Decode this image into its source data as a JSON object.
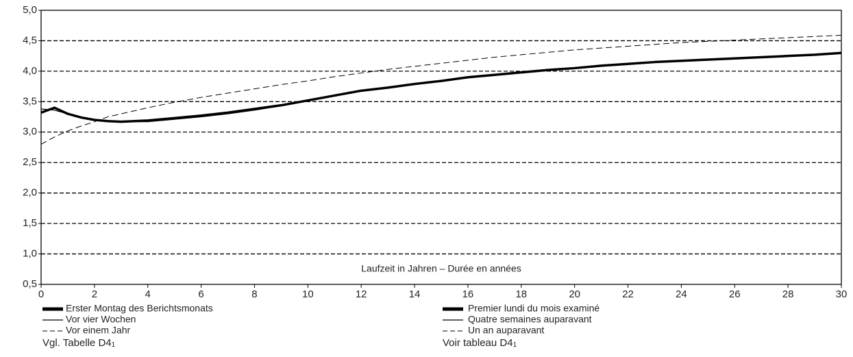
{
  "chart_data": {
    "type": "line",
    "xlabel": "Laufzeit in Jahren – Durée en années",
    "x": [
      0,
      0.5,
      1,
      1.5,
      2,
      2.5,
      3,
      4,
      5,
      6,
      7,
      8,
      9,
      10,
      11,
      12,
      13,
      14,
      15,
      16,
      17,
      18,
      19,
      20,
      21,
      22,
      23,
      24,
      25,
      26,
      27,
      28,
      29,
      30
    ],
    "series": [
      {
        "name": "Erster Montag des Berichtsmonats",
        "name_fr": "Premier lundi du mois examiné",
        "color": "#000000",
        "style": "thick",
        "values": [
          3.32,
          3.4,
          3.3,
          3.24,
          3.2,
          3.18,
          3.17,
          3.19,
          3.23,
          3.27,
          3.32,
          3.38,
          3.44,
          3.52,
          3.6,
          3.68,
          3.73,
          3.79,
          3.84,
          3.9,
          3.94,
          3.98,
          4.02,
          4.05,
          4.09,
          4.12,
          4.15,
          4.17,
          4.19,
          4.21,
          4.23,
          4.25,
          4.27,
          4.3
        ]
      },
      {
        "name": "Vor vier Wochen",
        "name_fr": "Quatre semaines auparavant",
        "color": "#000000",
        "style": "thin",
        "values": [
          3.38,
          3.36,
          3.3,
          3.23,
          3.19,
          3.18,
          3.17,
          3.17,
          3.21,
          3.25,
          3.3,
          3.36,
          3.43,
          3.51,
          3.59,
          3.67,
          3.72,
          3.78,
          3.83,
          3.89,
          3.93,
          3.97,
          4.01,
          4.04,
          4.08,
          4.11,
          4.14,
          4.16,
          4.18,
          4.2,
          4.22,
          4.24,
          4.26,
          4.29
        ]
      },
      {
        "name": "Vor einem Jahr",
        "name_fr": "Un an auparavant",
        "color": "#000000",
        "style": "dashed",
        "values": [
          2.8,
          2.92,
          3.02,
          3.1,
          3.17,
          3.25,
          3.3,
          3.4,
          3.49,
          3.57,
          3.64,
          3.71,
          3.78,
          3.84,
          3.91,
          3.97,
          4.03,
          4.08,
          4.13,
          4.18,
          4.23,
          4.27,
          4.31,
          4.35,
          4.38,
          4.41,
          4.44,
          4.47,
          4.49,
          4.51,
          4.53,
          4.55,
          4.57,
          4.59
        ]
      }
    ],
    "xlim": [
      0,
      30
    ],
    "xticks": [
      0,
      2,
      4,
      6,
      8,
      10,
      12,
      14,
      16,
      18,
      20,
      22,
      24,
      26,
      28,
      30
    ],
    "ylim": [
      0.5,
      5.0
    ],
    "yticks": [
      {
        "value": 0.5,
        "label": "0,5"
      },
      {
        "value": 1.0,
        "label": "1,0"
      },
      {
        "value": 1.5,
        "label": "1,5"
      },
      {
        "value": 2.0,
        "label": "2,0"
      },
      {
        "value": 2.5,
        "label": "2,5"
      },
      {
        "value": 3.0,
        "label": "3,0"
      },
      {
        "value": 3.5,
        "label": "3,5"
      },
      {
        "value": 4.0,
        "label": "4,0"
      },
      {
        "value": 4.5,
        "label": "4,5"
      },
      {
        "value": 5.0,
        "label": "5,0"
      }
    ],
    "grid": true,
    "notes": [
      {
        "text": "Vgl. Tabelle D4",
        "sub": "1"
      },
      {
        "text": "Voir tableau D4",
        "sub": "1"
      }
    ]
  }
}
